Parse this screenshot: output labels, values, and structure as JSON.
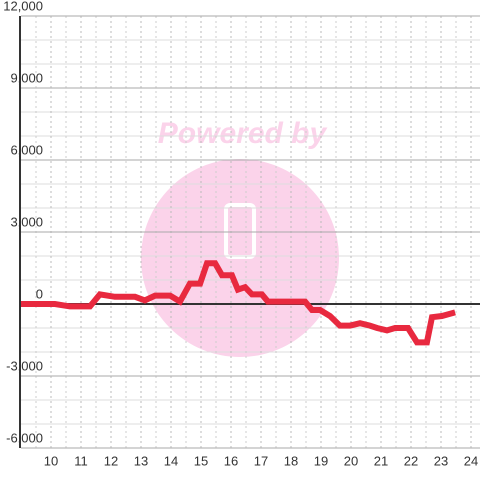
{
  "chart_data": {
    "type": "line",
    "watermark": "Powered by",
    "x": [
      9.0,
      10.13,
      10.63,
      11.3,
      11.63,
      12.13,
      12.8,
      13.13,
      13.47,
      13.97,
      14.3,
      14.63,
      14.97,
      15.2,
      15.47,
      15.7,
      16.03,
      16.23,
      16.47,
      16.7,
      17.03,
      17.23,
      18.47,
      18.7,
      18.97,
      19.3,
      19.63,
      19.97,
      20.3,
      20.63,
      20.87,
      21.2,
      21.47,
      21.9,
      22.2,
      22.53,
      22.7,
      23.03,
      23.47
    ],
    "series": [
      {
        "color": "#e8293f",
        "values": [
          0,
          0,
          -100,
          -100,
          400,
          300,
          300,
          150,
          350,
          350,
          100,
          850,
          850,
          1700,
          1700,
          1200,
          1200,
          600,
          700,
          400,
          400,
          100,
          100,
          -250,
          -250,
          -500,
          -900,
          -900,
          -800,
          -900,
          -1000,
          -1100,
          -1000,
          -1000,
          -1600,
          -1600,
          -550,
          -500,
          -350
        ]
      }
    ],
    "xlim": [
      9,
      24.3
    ],
    "xticks": [
      10,
      11,
      12,
      13,
      14,
      15,
      16,
      17,
      18,
      19,
      20,
      21,
      22,
      23,
      24
    ],
    "x_minor_ticks": [
      9.5,
      10.5,
      11.5,
      12.5,
      13.5,
      14.5,
      15.5,
      16.5,
      17.5,
      18.5,
      19.5,
      20.5,
      21.5,
      22.5,
      23.5
    ],
    "ylim": [
      -6000,
      12000
    ],
    "yticks": [
      {
        "value": -6000,
        "label": "-6,000"
      },
      {
        "value": -3000,
        "label": "-3,000"
      },
      0,
      {
        "value": 3000,
        "label": "3,000"
      },
      {
        "value": 6000,
        "label": "6,000"
      },
      {
        "value": 9000,
        "label": "9,000"
      },
      {
        "value": 12000,
        "label": "12,000"
      }
    ],
    "y_minor_ticks": [
      -5000,
      -4000,
      -2000,
      -1000,
      1000,
      2000,
      4000,
      5000,
      7000,
      8000,
      10000,
      11000
    ],
    "grid": true
  }
}
